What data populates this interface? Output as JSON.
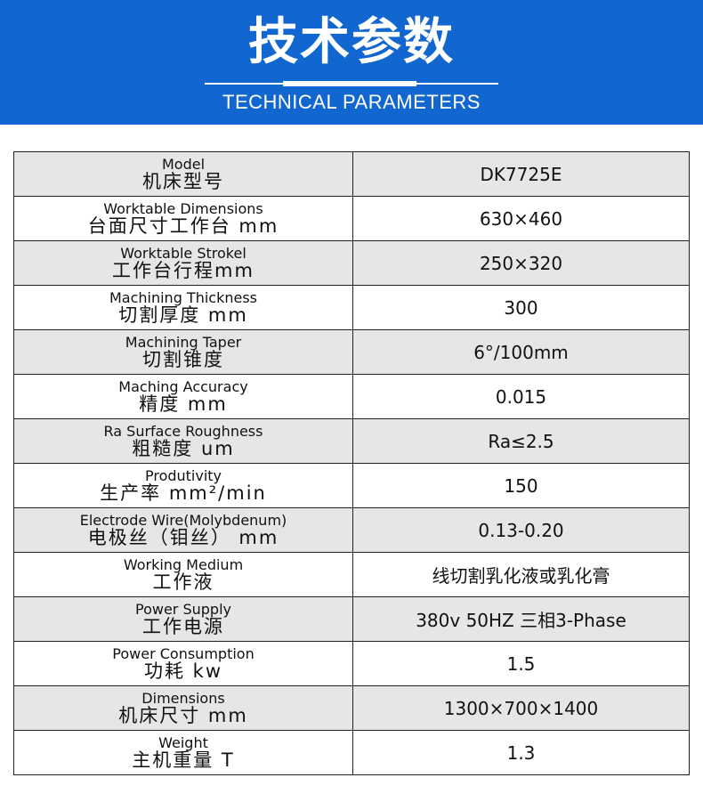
{
  "header": {
    "title": "技术参数",
    "subtitle": "TECHNICAL PARAMETERS"
  },
  "rows": [
    {
      "en": "Model",
      "zh": "机床型号",
      "value": "DK7725E"
    },
    {
      "en": "Worktable Dimensions",
      "zh": "台面尺寸工作台 mm",
      "value": "630×460"
    },
    {
      "en": "Worktable Strokel",
      "zh": "工作台行程mm",
      "value": "250×320"
    },
    {
      "en": "Machining Thickness",
      "zh": "切割厚度 mm",
      "value": "300"
    },
    {
      "en": "Machining Taper",
      "zh": "切割锥度",
      "value": "6°/100mm"
    },
    {
      "en": "Maching Accuracy",
      "zh": "精度 mm",
      "value": "0.015"
    },
    {
      "en": "Ra Surface Roughness",
      "zh": "粗糙度 um",
      "value": "Ra≤2.5"
    },
    {
      "en": "Produtivity",
      "zh": "生产率 mm²/min",
      "value": "150"
    },
    {
      "en": "Electrode Wire(Molybdenum)",
      "zh": "电极丝（钼丝） mm",
      "value": "0.13-0.20"
    },
    {
      "en": "Working Medium",
      "zh": "工作液",
      "value": "线切割乳化液或乳化膏"
    },
    {
      "en": "Power Supply",
      "zh": "工作电源",
      "value": "380v 50HZ 三相3-Phase"
    },
    {
      "en": "Power Consumption",
      "zh": "功耗 kw",
      "value": "1.5"
    },
    {
      "en": "Dimensions",
      "zh": "机床尺寸 mm",
      "value": "1300×700×1400"
    },
    {
      "en": "Weight",
      "zh": "主机重量 T",
      "value": "1.3"
    }
  ],
  "colors": {
    "header_bg": "#1166d0",
    "row_alt": "#e6e6e6"
  }
}
